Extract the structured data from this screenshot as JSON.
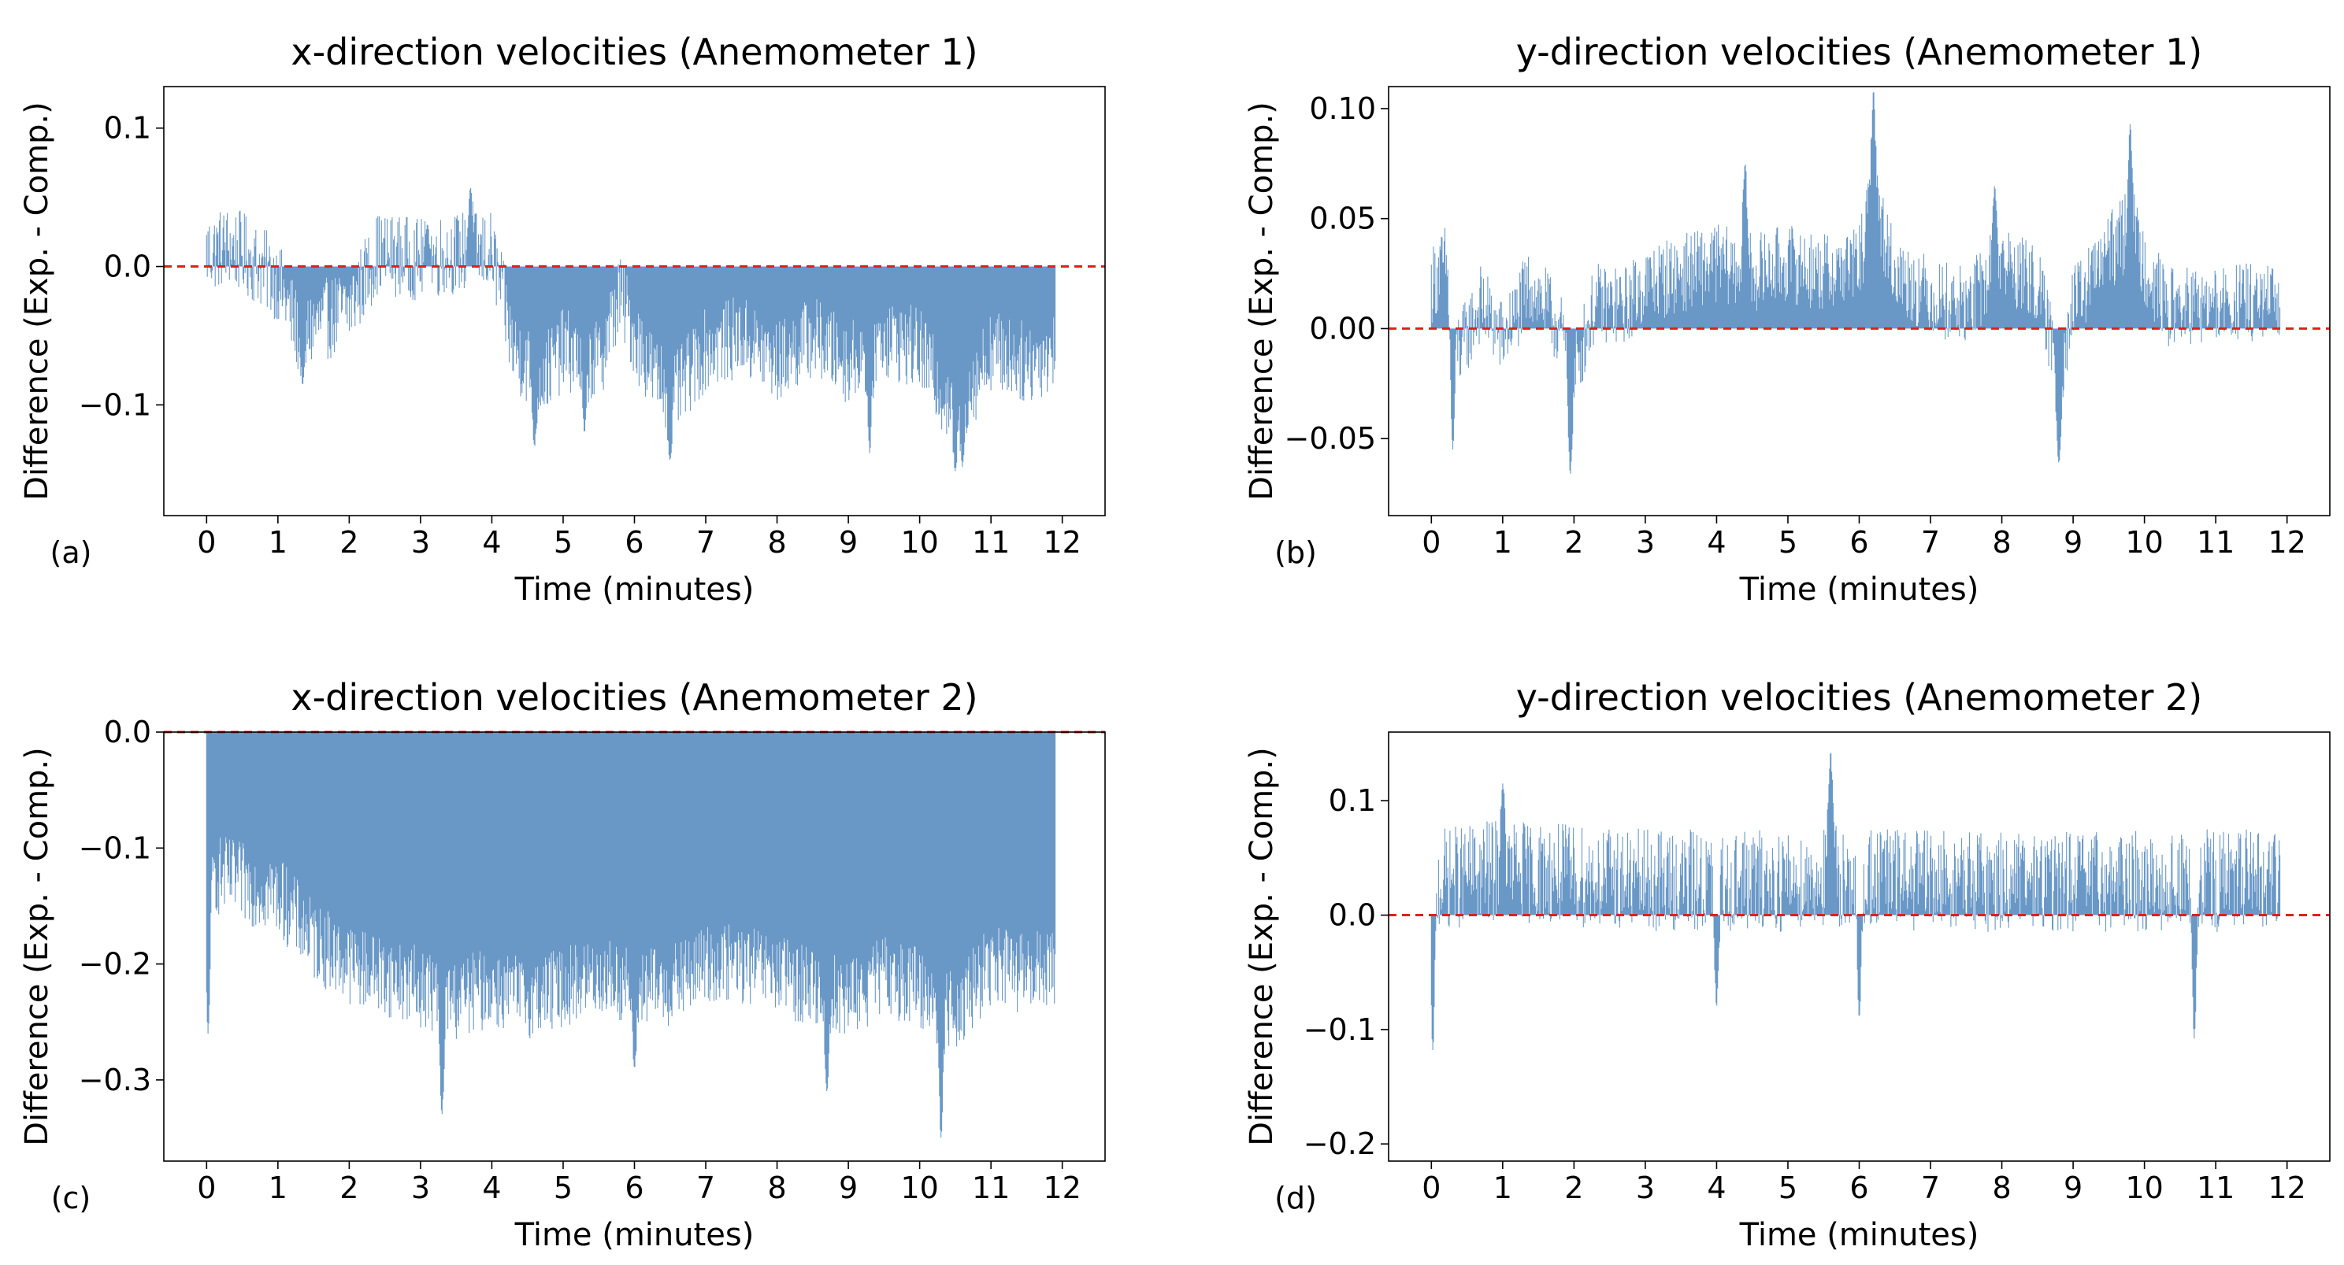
{
  "chart_data": [
    {
      "type": "bar",
      "panel_label": "(a)",
      "title": "x-direction velocities (Anemometer 1)",
      "xlabel": "Time (minutes)",
      "ylabel": "Difference (Exp. - Comp.)",
      "xlim": [
        -0.6,
        12.6
      ],
      "ylim": [
        -0.18,
        0.13
      ],
      "xticks": [
        0,
        1,
        2,
        3,
        4,
        5,
        6,
        7,
        8,
        9,
        10,
        11,
        12
      ],
      "yticks": [
        0.1,
        0.0,
        -0.1
      ],
      "ytick_labels": [
        "0.1",
        "0.0",
        "−0.1"
      ],
      "reference_line": 0.0,
      "color": "#4f86bd",
      "line_color": "#e0201b",
      "trend": {
        "x": [
          0,
          0.3,
          0.5,
          1.0,
          1.3,
          1.6,
          2.0,
          2.4,
          3.0,
          3.5,
          4.0,
          4.1,
          4.3,
          4.7,
          5.0,
          5.5,
          5.8,
          6.0,
          6.3,
          6.6,
          7.0,
          7.5,
          8.0,
          8.5,
          9.0,
          9.5,
          10.0,
          10.3,
          10.5,
          10.8,
          11.0,
          11.5,
          11.9
        ],
        "y": [
          0.01,
          0.015,
          0.01,
          -0.01,
          -0.05,
          -0.04,
          -0.03,
          0.01,
          0.005,
          0.01,
          0.01,
          -0.01,
          -0.06,
          -0.08,
          -0.06,
          -0.07,
          -0.02,
          -0.05,
          -0.08,
          -0.09,
          -0.06,
          -0.05,
          -0.07,
          -0.05,
          -0.07,
          -0.05,
          -0.06,
          -0.09,
          -0.1,
          -0.08,
          -0.06,
          -0.07,
          -0.06
        ]
      },
      "noise": 0.03,
      "peak_events": [
        [
          1.35,
          -0.085
        ],
        [
          3.1,
          0.03
        ],
        [
          3.7,
          0.057
        ],
        [
          4.6,
          -0.13
        ],
        [
          5.3,
          -0.12
        ],
        [
          6.5,
          -0.14
        ],
        [
          9.3,
          -0.135
        ],
        [
          10.5,
          -0.148
        ],
        [
          10.6,
          -0.145
        ]
      ]
    },
    {
      "type": "bar",
      "panel_label": "(b)",
      "title": "y-direction velocities (Anemometer 1)",
      "xlabel": "Time (minutes)",
      "ylabel": "Difference (Exp. - Comp.)",
      "xlim": [
        -0.6,
        12.6
      ],
      "ylim": [
        -0.085,
        0.11
      ],
      "xticks": [
        0,
        1,
        2,
        3,
        4,
        5,
        6,
        7,
        8,
        9,
        10,
        11,
        12
      ],
      "yticks": [
        0.1,
        0.05,
        0.0,
        -0.05
      ],
      "ytick_labels": [
        "0.10",
        "0.05",
        "0.00",
        "−0.05"
      ],
      "reference_line": 0.0,
      "color": "#4f86bd",
      "line_color": "#e0201b",
      "trend": {
        "x": [
          0,
          0.2,
          0.4,
          0.7,
          1.0,
          1.4,
          1.8,
          2.0,
          2.3,
          2.7,
          3.0,
          3.5,
          4.0,
          4.5,
          5.0,
          5.5,
          6.0,
          6.2,
          6.5,
          7.0,
          7.5,
          8.0,
          8.5,
          8.8,
          9.0,
          9.5,
          9.8,
          10.0,
          10.3,
          10.7,
          11.0,
          11.5,
          11.9
        ],
        "y": [
          0.02,
          0.03,
          -0.01,
          0.012,
          -0.005,
          0.02,
          0.0,
          -0.02,
          0.012,
          0.01,
          0.02,
          0.025,
          0.03,
          0.025,
          0.03,
          0.025,
          0.03,
          0.06,
          0.025,
          0.015,
          0.01,
          0.03,
          0.02,
          -0.02,
          0.01,
          0.035,
          0.045,
          0.03,
          0.01,
          0.01,
          0.01,
          0.012,
          0.01
        ]
      },
      "noise": 0.018,
      "peak_events": [
        [
          0.3,
          -0.055
        ],
        [
          1.95,
          -0.066
        ],
        [
          6.2,
          0.108
        ],
        [
          8.8,
          -0.061
        ],
        [
          9.8,
          0.093
        ],
        [
          4.4,
          0.075
        ],
        [
          7.9,
          0.065
        ]
      ]
    },
    {
      "type": "bar",
      "panel_label": "(c)",
      "title": "x-direction velocities (Anemometer 2)",
      "xlabel": "Time (minutes)",
      "ylabel": "Difference (Exp. - Comp.)",
      "xlim": [
        -0.6,
        12.6
      ],
      "ylim": [
        -0.37,
        0.0
      ],
      "xticks": [
        0,
        1,
        2,
        3,
        4,
        5,
        6,
        7,
        8,
        9,
        10,
        11,
        12
      ],
      "yticks": [
        0.0,
        -0.1,
        -0.2,
        -0.3
      ],
      "ytick_labels": [
        "0.0",
        "−0.1",
        "−0.2",
        "−0.3"
      ],
      "reference_line": 0.0,
      "color": "#4f86bd",
      "line_color": "#e0201b",
      "trend": {
        "x": [
          0,
          0.5,
          1.0,
          1.5,
          2.0,
          2.5,
          3.0,
          3.5,
          4.0,
          4.5,
          5.0,
          5.5,
          6.0,
          6.5,
          7.0,
          7.5,
          8.0,
          8.5,
          9.0,
          9.5,
          10.0,
          10.5,
          11.0,
          11.5,
          11.9
        ],
        "y": [
          -0.12,
          -0.13,
          -0.14,
          -0.18,
          -0.2,
          -0.21,
          -0.22,
          -0.23,
          -0.22,
          -0.23,
          -0.22,
          -0.21,
          -0.22,
          -0.22,
          -0.2,
          -0.2,
          -0.21,
          -0.22,
          -0.23,
          -0.21,
          -0.22,
          -0.24,
          -0.2,
          -0.21,
          -0.2
        ]
      },
      "noise": 0.035,
      "peak_events": [
        [
          0.02,
          -0.26
        ],
        [
          3.3,
          -0.33
        ],
        [
          6.0,
          -0.29
        ],
        [
          8.7,
          -0.31
        ],
        [
          10.3,
          -0.35
        ]
      ]
    },
    {
      "type": "bar",
      "panel_label": "(d)",
      "title": "y-direction velocities (Anemometer 2)",
      "xlabel": "Time (minutes)",
      "ylabel": "Difference (Exp. - Comp.)",
      "xlim": [
        -0.6,
        12.6
      ],
      "ylim": [
        -0.215,
        0.16
      ],
      "xticks": [
        0,
        1,
        2,
        3,
        4,
        5,
        6,
        7,
        8,
        9,
        10,
        11,
        12
      ],
      "yticks": [
        0.1,
        0.0,
        -0.1,
        -0.2
      ],
      "ytick_labels": [
        "0.1",
        "0.0",
        "−0.1",
        "−0.2"
      ],
      "reference_line": 0.0,
      "color": "#4f86bd",
      "line_color": "#e0201b",
      "trend": {
        "x": [
          0,
          1.0,
          2.0,
          3.0,
          4.0,
          5.0,
          6.0,
          7.0,
          8.0,
          9.0,
          10.0,
          11.0,
          11.9
        ],
        "y": [
          0.03,
          0.04,
          0.035,
          0.03,
          0.03,
          0.03,
          0.035,
          0.03,
          0.03,
          0.03,
          0.03,
          0.03,
          0.03
        ]
      },
      "noise": 0.045,
      "peak_events": [
        [
          0.02,
          -0.118
        ],
        [
          5.6,
          0.143
        ],
        [
          10.7,
          -0.108
        ],
        [
          4.0,
          -0.08
        ],
        [
          6.0,
          -0.09
        ],
        [
          1.0,
          0.115
        ]
      ]
    }
  ]
}
